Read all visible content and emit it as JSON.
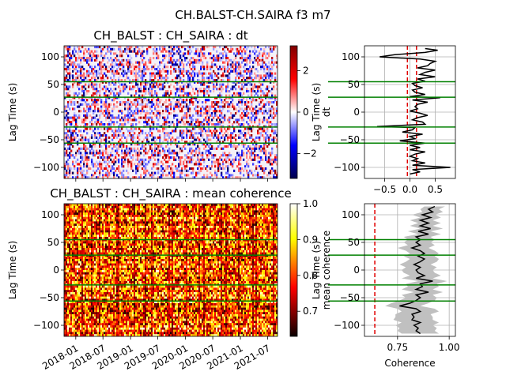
{
  "figure": {
    "suptitle": "CH.BALST-CH.SAIRA f3 m7"
  },
  "chart_data": [
    {
      "id": "dt-heatmap",
      "type": "heatmap",
      "title": "CH_BALST : CH_SAIRA : dt",
      "ylabel": "Lag Time (s)",
      "xlabel": "",
      "xlim": [
        "2017-10-15",
        "2021-09-05"
      ],
      "ylim": [
        -120,
        120
      ],
      "yticks": [
        -100,
        -50,
        0,
        50,
        100
      ],
      "green_lines": [
        55,
        27,
        -27,
        -56
      ],
      "colorbar": {
        "colormap": "seismic",
        "range": [
          -3.2,
          3.2
        ],
        "ticks": [
          2,
          0,
          -2
        ],
        "tick_labels": [
          "2",
          "0",
          "−2"
        ]
      }
    },
    {
      "id": "dt-profile",
      "type": "line",
      "ylabel": "Lag Time (s)",
      "ylabel2": "dt",
      "xlim": [
        -0.9,
        0.9
      ],
      "ylim": [
        -120,
        120
      ],
      "xticks": [
        -0.5,
        0.0,
        0.5
      ],
      "xtick_labels": [
        "−0.5",
        "0.0",
        "0.5"
      ],
      "yticks": [
        -100,
        -50,
        0,
        50,
        100
      ],
      "red_dashed_lines": [
        -0.05,
        0.13
      ],
      "green_lines": [
        55,
        27,
        -27,
        -56
      ],
      "series": [
        {
          "y": [
            115,
            112,
            108,
            104,
            100,
            96,
            92,
            88,
            84,
            80,
            76,
            72,
            68,
            64,
            60,
            56,
            52,
            48,
            44,
            40,
            36,
            32,
            28,
            26,
            22,
            18,
            14,
            10,
            6,
            2,
            -2,
            -6,
            -10,
            -14,
            -18,
            -22,
            -26,
            -28,
            -32,
            -36,
            -40,
            -44,
            -48,
            -52,
            -56,
            -60,
            -64,
            -68,
            -72,
            -76,
            -80,
            -84,
            -88,
            -92,
            -96,
            -100,
            -104,
            -108,
            -112
          ],
          "x": [
            0.3,
            0.55,
            0.3,
            -0.3,
            -0.6,
            0.2,
            0.5,
            0.4,
            0.35,
            0.15,
            0.5,
            0.3,
            0.2,
            0.5,
            0.15,
            0.3,
            0.05,
            0.1,
            0.25,
            0.05,
            0.1,
            0.3,
            0.0,
            0.6,
            0.05,
            0.35,
            0.15,
            0.1,
            0.15,
            0.0,
            0.2,
            0.35,
            0.15,
            0.05,
            0.25,
            0.3,
            -0.65,
            0.1,
            0.05,
            -0.15,
            0.25,
            0.0,
            0.1,
            -0.2,
            0.3,
            0.0,
            0.2,
            0.0,
            0.3,
            0.1,
            0.0,
            0.15,
            0.05,
            0.3,
            0.05,
            0.8,
            0.05,
            0.2,
            0.0
          ]
        }
      ]
    },
    {
      "id": "coh-heatmap",
      "type": "heatmap",
      "title": "CH_BALST : CH_SAIRA : mean coherence",
      "ylabel": "Lag Time (s)",
      "xlabel": "",
      "xlim": [
        "2017-10-15",
        "2021-09-05"
      ],
      "ylim": [
        -120,
        120
      ],
      "yticks": [
        -100,
        -50,
        0,
        50,
        100
      ],
      "xtick_labels": [
        "2018-01",
        "2018-07",
        "2019-01",
        "2019-07",
        "2020-01",
        "2020-07",
        "2021-01",
        "2021-07"
      ],
      "xtick_dates": [
        "2018-01-01",
        "2018-07-01",
        "2019-01-01",
        "2019-07-01",
        "2020-01-01",
        "2020-07-01",
        "2021-01-01",
        "2021-07-01"
      ],
      "green_lines": [
        55,
        27,
        -27,
        -56
      ],
      "colorbar": {
        "colormap": "hot",
        "range": [
          0.63,
          1.0
        ],
        "ticks": [
          1.0,
          0.9,
          0.8,
          0.7
        ],
        "tick_labels": [
          "1.0",
          "0.9",
          "0.8",
          "0.7"
        ]
      }
    },
    {
      "id": "coh-profile",
      "type": "line",
      "ylabel": "Lag Time (s)",
      "ylabel2": "mean coherence",
      "xlabel": "Coherence",
      "xlim": [
        0.59,
        1.03
      ],
      "ylim": [
        -120,
        120
      ],
      "xticks": [
        0.75,
        1.0
      ],
      "xtick_labels": [
        "0.75",
        "1.00"
      ],
      "yticks": [
        -100,
        -50,
        0,
        50,
        100
      ],
      "red_dashed_lines": [
        0.64
      ],
      "green_lines": [
        55,
        27,
        -27,
        -56
      ],
      "series": [
        {
          "y": [
            115,
            110,
            105,
            100,
            95,
            90,
            85,
            80,
            75,
            70,
            65,
            60,
            55,
            50,
            45,
            40,
            35,
            30,
            25,
            20,
            15,
            10,
            5,
            0,
            -5,
            -10,
            -15,
            -20,
            -25,
            -30,
            -35,
            -40,
            -45,
            -50,
            -55,
            -60,
            -65,
            -70,
            -75,
            -80,
            -85,
            -90,
            -95,
            -100,
            -105,
            -110,
            -115
          ],
          "x": [
            0.93,
            0.9,
            0.92,
            0.87,
            0.91,
            0.86,
            0.9,
            0.86,
            0.91,
            0.85,
            0.9,
            0.84,
            0.86,
            0.84,
            0.86,
            0.82,
            0.86,
            0.88,
            0.85,
            0.88,
            0.86,
            0.83,
            0.86,
            0.84,
            0.85,
            0.88,
            0.84,
            0.92,
            0.86,
            0.87,
            0.84,
            0.9,
            0.84,
            0.86,
            0.84,
            0.81,
            0.76,
            0.84,
            0.86,
            0.82,
            0.83,
            0.82,
            0.86,
            0.83,
            0.85,
            0.84,
            0.86
          ],
          "band_low": [
            0.88,
            0.86,
            0.87,
            0.82,
            0.86,
            0.81,
            0.85,
            0.81,
            0.86,
            0.8,
            0.85,
            0.78,
            0.8,
            0.78,
            0.8,
            0.75,
            0.79,
            0.81,
            0.78,
            0.81,
            0.79,
            0.76,
            0.79,
            0.77,
            0.78,
            0.81,
            0.77,
            0.85,
            0.79,
            0.8,
            0.77,
            0.83,
            0.77,
            0.79,
            0.76,
            0.72,
            0.69,
            0.75,
            0.77,
            0.74,
            0.74,
            0.73,
            0.77,
            0.74,
            0.76,
            0.75,
            0.77
          ],
          "band_high": [
            0.98,
            0.95,
            0.97,
            0.93,
            0.96,
            0.92,
            0.96,
            0.92,
            0.97,
            0.91,
            0.96,
            0.91,
            0.93,
            0.91,
            0.93,
            0.9,
            0.93,
            0.95,
            0.93,
            0.95,
            0.94,
            0.91,
            0.94,
            0.92,
            0.93,
            0.96,
            0.92,
            0.99,
            0.94,
            0.95,
            0.92,
            0.97,
            0.92,
            0.94,
            0.93,
            0.9,
            0.86,
            0.93,
            0.95,
            0.91,
            0.92,
            0.92,
            0.95,
            0.92,
            0.94,
            0.93,
            0.95
          ]
        }
      ]
    }
  ]
}
